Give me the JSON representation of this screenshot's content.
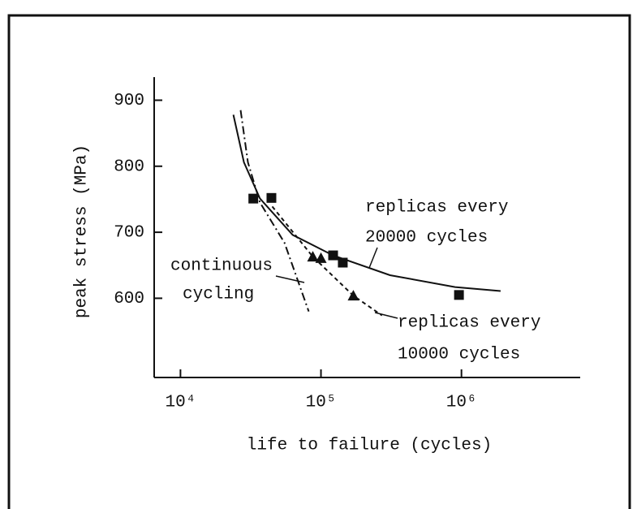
{
  "chart_data": {
    "type": "scatter",
    "xlabel": "life to failure (cycles)",
    "ylabel": "peak stress (MPa)",
    "xscale": "log",
    "xlim": [
      6500,
      7000000
    ],
    "ylim": [
      480,
      935
    ],
    "xticks": [
      {
        "value": 10000,
        "label": "10⁴"
      },
      {
        "value": 100000,
        "label": "10⁵"
      },
      {
        "value": 1000000,
        "label": "10⁶"
      }
    ],
    "yticks": [
      600,
      700,
      800,
      900
    ],
    "color": "#111111",
    "series": [
      {
        "marker": "square",
        "x": [
          33000,
          44400,
          122000,
          143000,
          960000
        ],
        "values": [
          751,
          752,
          665,
          654,
          605
        ]
      },
      {
        "marker": "triangle",
        "x": [
          87500,
          100000,
          170000
        ],
        "values": [
          663,
          661,
          604
        ]
      },
      {
        "line": "solid",
        "x": [
          23800,
          28300,
          36800,
          62900,
          122000,
          310000,
          900000,
          1900000
        ],
        "values": [
          878,
          806,
          751,
          696,
          665,
          635,
          617,
          611
        ]
      },
      {
        "line": "dashdot",
        "x": [
          26800,
          30200,
          36800,
          55000,
          81900
        ],
        "values": [
          885,
          806,
          745,
          684,
          580
        ]
      },
      {
        "line": "dashed",
        "x": [
          45000,
          87500,
          170000,
          272000
        ],
        "values": [
          739,
          663,
          604,
          574
        ]
      }
    ],
    "annotations": [
      {
        "lines": [
          "replicas every",
          "20000 cycles"
        ]
      },
      {
        "lines": [
          "continuous",
          "cycling"
        ]
      },
      {
        "lines": [
          "replicas every",
          "10000 cycles"
        ]
      }
    ]
  }
}
